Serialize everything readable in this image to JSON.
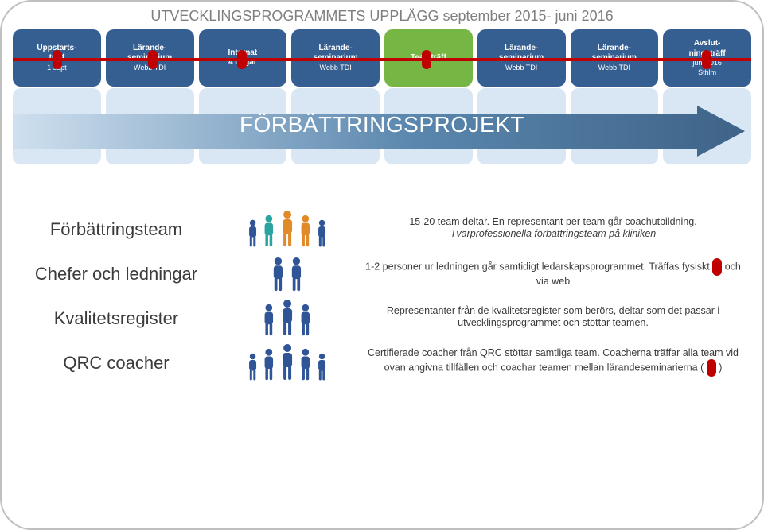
{
  "title": "UTVECKLINGSPROGRAMMETS UPPLÄGG september 2015- juni 2016",
  "colors": {
    "stage_blue": "#365f91",
    "stage_green": "#76b644",
    "title_grey": "#7f7f7f",
    "timeline_red": "#c00000",
    "arrow_gradient_start": "#cfe0ef",
    "arrow_gradient_mid": "#4f7fa8",
    "arrow_gradient_end": "#3f6388",
    "bg_box": "#d9e7f5",
    "person_blue": "#2f5597",
    "person_teal": "#2aa4a0",
    "person_orange": "#e08a2a"
  },
  "timeline": {
    "stages": [
      {
        "l1": "Uppstarts-",
        "l2": "träff",
        "l3": "1 sept",
        "color": "blue"
      },
      {
        "l1": "Lärande-",
        "l2": "seminarium",
        "l3": "Webb TDI",
        "color": "blue"
      },
      {
        "l1": "Internat",
        "l2": "4 dagar",
        "l3": "",
        "color": "blue"
      },
      {
        "l1": "Lärande-",
        "l2": "seminarium",
        "l3": "Webb TDI",
        "color": "blue"
      },
      {
        "l1": "Teamträff",
        "l2": "",
        "l3": "",
        "color": "green"
      },
      {
        "l1": "Lärande-",
        "l2": "seminarium",
        "l3": "Webb TDI",
        "color": "blue"
      },
      {
        "l1": "Lärande-",
        "l2": "seminarium",
        "l3": "Webb TDI",
        "color": "blue"
      },
      {
        "l1": "Avslut-",
        "l2": "ningsträff",
        "l3": "juni 2016\nSthlm",
        "color": "blue"
      }
    ],
    "marker_positions_pct": [
      6,
      19,
      31,
      56,
      94
    ]
  },
  "arrow_label": "FÖRBÄTTRINGSPROJEKT",
  "groups": [
    {
      "label": "Förbättringsteam",
      "people_colors": [
        "blue",
        "teal",
        "orange",
        "orange",
        "blue"
      ],
      "desc_parts": [
        "15-20 team deltar. En representant per team går coachutbildning.",
        "Tvärprofessionella förbättringsteam på kliniken"
      ]
    },
    {
      "label": "Chefer och ledningar",
      "people_colors": [
        "blue",
        "blue"
      ],
      "desc_parts": [
        "1-2 personer ur ledningen går samtidigt ledarskapsprogrammet. Träffas fysiskt ",
        " och via web"
      ],
      "inline_marker": true
    },
    {
      "label": "Kvalitetsregister",
      "people_colors": [
        "blue",
        "blue",
        "blue"
      ],
      "desc_parts": [
        "Representanter från de kvalitetsregister som berörs, deltar som det passar i utvecklingsprogrammet och stöttar teamen."
      ]
    },
    {
      "label": "QRC coacher",
      "people_colors": [
        "blue",
        "blue",
        "blue",
        "blue",
        "blue"
      ],
      "desc_parts": [
        "Certifierade coacher från QRC stöttar samtliga team. Coacherna träffar alla team vid ovan angivna tillfällen och coachar teamen mellan lärandeseminarierna ( ",
        " )"
      ],
      "inline_marker": true
    }
  ]
}
